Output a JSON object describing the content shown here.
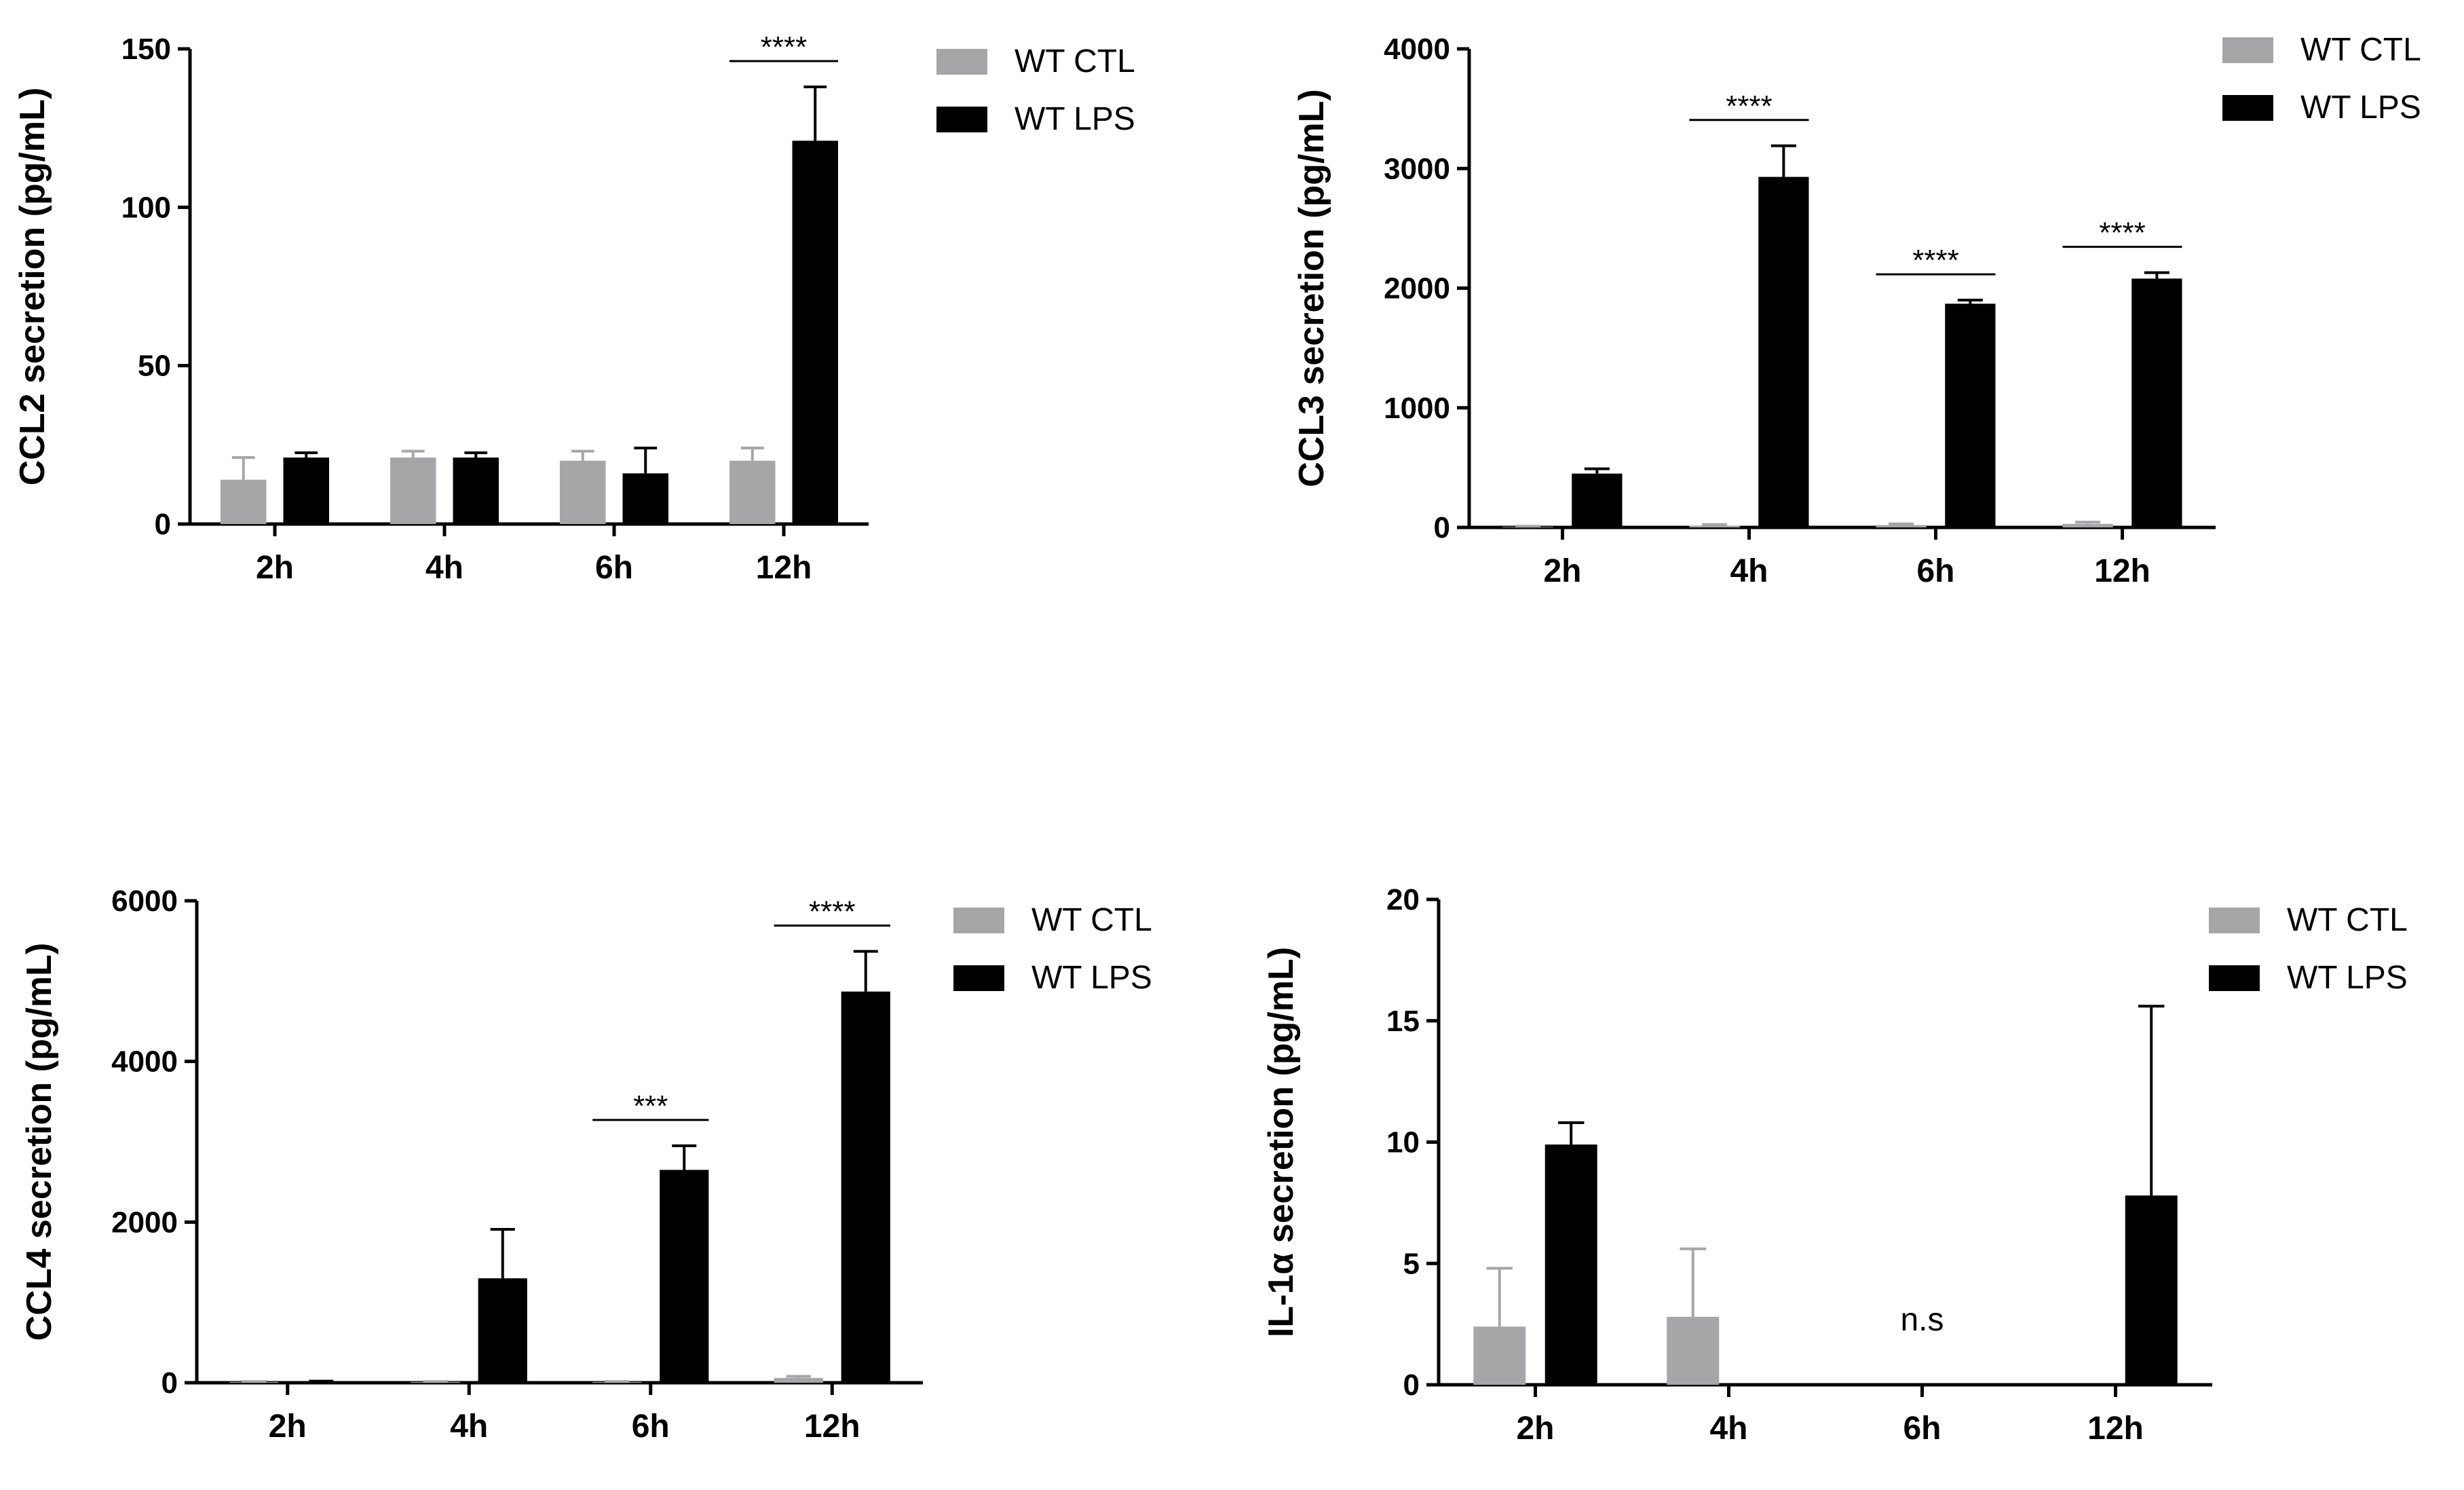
{
  "colors": {
    "ctl": "#a6a6a8",
    "lps": "#000000",
    "axis": "#000000"
  },
  "chart_data": [
    {
      "type": "bar",
      "ylabel": "CCL2 secretion (pg/mL)",
      "categories": [
        "2h",
        "4h",
        "6h",
        "12h"
      ],
      "ylim": [
        0,
        150
      ],
      "yticks": [
        0,
        50,
        100,
        150
      ],
      "legend_placement": "top-right",
      "series": [
        {
          "name": "WT CTL",
          "values": [
            14,
            21,
            20,
            20
          ],
          "errors": [
            7,
            2,
            3,
            4
          ]
        },
        {
          "name": "WT LPS",
          "values": [
            21,
            21,
            16,
            121
          ],
          "errors": [
            1.5,
            1.5,
            8,
            17
          ]
        }
      ],
      "significance": [
        {
          "category": "12h",
          "label": "****"
        }
      ]
    },
    {
      "type": "bar",
      "ylabel": "CCL3 secretion (pg/mL)",
      "categories": [
        "2h",
        "4h",
        "6h",
        "12h"
      ],
      "ylim": [
        0,
        4000
      ],
      "yticks": [
        0,
        1000,
        2000,
        3000,
        4000
      ],
      "legend_placement": "top-right",
      "series": [
        {
          "name": "WT CTL",
          "values": [
            5,
            15,
            20,
            30
          ],
          "errors": [
            5,
            10,
            10,
            15
          ]
        },
        {
          "name": "WT LPS",
          "values": [
            450,
            2930,
            1870,
            2080
          ],
          "errors": [
            40,
            260,
            30,
            50
          ]
        }
      ],
      "significance": [
        {
          "category": "4h",
          "label": "****"
        },
        {
          "category": "6h",
          "label": "****"
        },
        {
          "category": "12h",
          "label": "****"
        }
      ]
    },
    {
      "type": "bar",
      "ylabel": "CCL4 secretion (pg/mL)",
      "categories": [
        "2h",
        "4h",
        "6h",
        "12h"
      ],
      "ylim": [
        0,
        6000
      ],
      "yticks": [
        0,
        2000,
        4000,
        6000
      ],
      "legend_placement": "top-right",
      "series": [
        {
          "name": "WT CTL",
          "values": [
            10,
            10,
            10,
            60
          ],
          "errors": [
            5,
            5,
            5,
            20
          ]
        },
        {
          "name": "WT LPS",
          "values": [
            15,
            1300,
            2650,
            4870
          ],
          "errors": [
            5,
            610,
            300,
            500
          ]
        }
      ],
      "significance": [
        {
          "category": "6h",
          "label": "***"
        },
        {
          "category": "12h",
          "label": "****"
        }
      ]
    },
    {
      "type": "bar",
      "ylabel": "IL-1α secretion (pg/mL)",
      "categories": [
        "2h",
        "4h",
        "6h",
        "12h"
      ],
      "ylim": [
        0,
        20
      ],
      "yticks": [
        0,
        5,
        10,
        15,
        20
      ],
      "legend_placement": "top-right",
      "series": [
        {
          "name": "WT CTL",
          "values": [
            2.4,
            2.8,
            0,
            0
          ],
          "errors": [
            2.4,
            2.8,
            0,
            0
          ]
        },
        {
          "name": "WT LPS",
          "values": [
            9.9,
            0,
            0,
            7.8
          ],
          "errors": [
            0.9,
            0,
            0,
            7.8
          ]
        }
      ],
      "annotations": [
        {
          "category": "6h",
          "label": "n.s"
        }
      ]
    }
  ]
}
